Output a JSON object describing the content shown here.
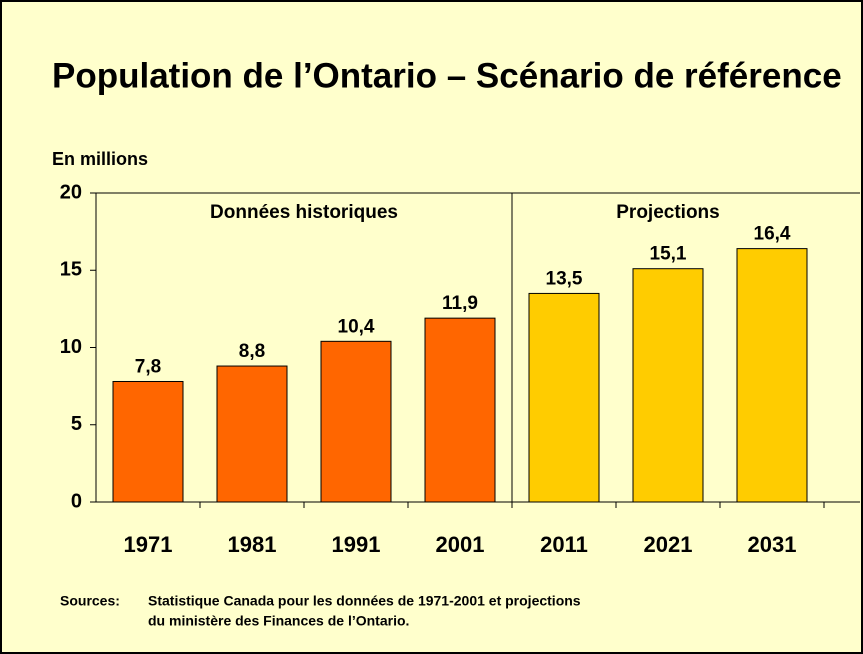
{
  "chart_data": {
    "type": "bar",
    "title": "Population de l’Ontario – Scénario de référence",
    "y_label": "En millions",
    "annotations": [
      "Données historiques",
      "Projections"
    ],
    "categories": [
      "1971",
      "1981",
      "1991",
      "2001",
      "2011",
      "2021",
      "2031"
    ],
    "values": [
      7.8,
      8.8,
      10.4,
      11.9,
      13.5,
      15.1,
      16.4
    ],
    "value_labels": [
      "7,8",
      "8,8",
      "10,4",
      "11,9",
      "13,5",
      "15,1",
      "16,4"
    ],
    "colors": [
      "#ff6600",
      "#ff6600",
      "#ff6600",
      "#ff6600",
      "#ffcc00",
      "#ffcc00",
      "#ffcc00"
    ],
    "ylim": [
      0,
      20
    ],
    "yticks": [
      0,
      5,
      10,
      15,
      20
    ],
    "grid": false,
    "source_label": "Sources:",
    "source": [
      "Statistique Canada pour les données de 1971-2001 et projections",
      "du ministère des Finances de l’Ontario."
    ]
  }
}
